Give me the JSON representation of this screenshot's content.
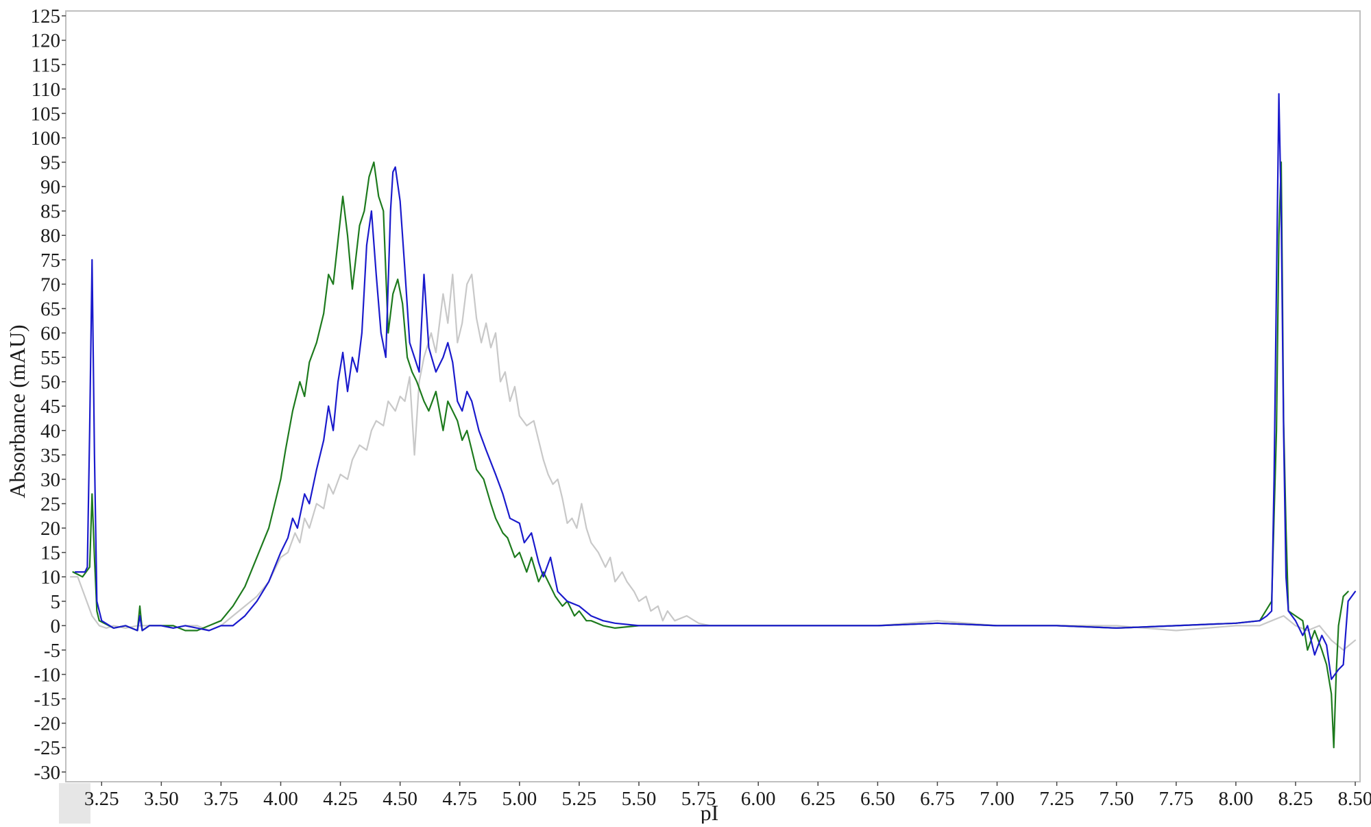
{
  "chart_data": {
    "type": "line",
    "xlabel": "pI",
    "ylabel": "Absorbance (mAU)",
    "xlim": [
      3.1,
      8.52
    ],
    "ylim": [
      -32,
      126
    ],
    "x_ticks": [
      3.25,
      3.5,
      3.75,
      4.0,
      4.25,
      4.5,
      4.75,
      5.0,
      5.25,
      5.5,
      5.75,
      6.0,
      6.25,
      6.5,
      6.75,
      7.0,
      7.25,
      7.5,
      7.75,
      8.0,
      8.25,
      8.5
    ],
    "x_tick_labels": [
      "3.25",
      "3.50",
      "3.75",
      "4.00",
      "4.25",
      "4.50",
      "4.75",
      "5.00",
      "5.25",
      "5.50",
      "5.75",
      "6.00",
      "6.25",
      "6.50",
      "6.75",
      "7.00",
      "7.25",
      "7.50",
      "7.75",
      "8.00",
      "8.25",
      "8.50"
    ],
    "y_ticks": [
      -30,
      -25,
      -20,
      -15,
      -10,
      -5,
      0,
      5,
      10,
      15,
      20,
      25,
      30,
      35,
      40,
      45,
      50,
      55,
      60,
      65,
      70,
      75,
      80,
      85,
      90,
      95,
      100,
      105,
      110,
      115,
      120,
      125
    ],
    "y_tick_labels": [
      "-30",
      "-25",
      "-20",
      "-15",
      "-10",
      "-5",
      "0",
      "5",
      "10",
      "15",
      "20",
      "25",
      "30",
      "35",
      "40",
      "45",
      "50",
      "55",
      "60",
      "65",
      "70",
      "75",
      "80",
      "85",
      "90",
      "95",
      "100",
      "105",
      "110",
      "115",
      "120",
      "125"
    ],
    "grid": false,
    "legend": "none",
    "series": [
      {
        "color": "#c8c8c8",
        "x": [
          3.12,
          3.15,
          3.18,
          3.21,
          3.24,
          3.27,
          3.3,
          3.35,
          3.4,
          3.45,
          3.5,
          3.55,
          3.6,
          3.65,
          3.7,
          3.75,
          3.8,
          3.85,
          3.9,
          3.95,
          4.0,
          4.03,
          4.06,
          4.08,
          4.1,
          4.12,
          4.15,
          4.18,
          4.2,
          4.22,
          4.25,
          4.28,
          4.3,
          4.33,
          4.36,
          4.38,
          4.4,
          4.43,
          4.45,
          4.48,
          4.5,
          4.52,
          4.54,
          4.56,
          4.58,
          4.6,
          4.63,
          4.65,
          4.68,
          4.7,
          4.72,
          4.74,
          4.76,
          4.78,
          4.8,
          4.82,
          4.84,
          4.86,
          4.88,
          4.9,
          4.92,
          4.94,
          4.96,
          4.98,
          5.0,
          5.03,
          5.06,
          5.08,
          5.1,
          5.12,
          5.14,
          5.16,
          5.18,
          5.2,
          5.22,
          5.24,
          5.26,
          5.28,
          5.3,
          5.33,
          5.36,
          5.38,
          5.4,
          5.43,
          5.45,
          5.48,
          5.5,
          5.53,
          5.55,
          5.58,
          5.6,
          5.62,
          5.65,
          5.7,
          5.75,
          5.8,
          5.9,
          6.0,
          6.25,
          6.5,
          6.75,
          7.0,
          7.25,
          7.5,
          7.75,
          8.0,
          8.1,
          8.15,
          8.2,
          8.25,
          8.3,
          8.35,
          8.4,
          8.45,
          8.5
        ],
        "y": [
          10,
          10,
          6,
          2,
          0,
          -0.5,
          0,
          -0.5,
          0,
          0,
          0,
          -0.5,
          0,
          0,
          -1,
          0,
          2,
          4,
          6,
          9,
          14,
          15,
          19,
          17,
          22,
          20,
          25,
          24,
          29,
          27,
          31,
          30,
          34,
          37,
          36,
          40,
          42,
          41,
          46,
          44,
          47,
          46,
          51,
          35,
          50,
          55,
          60,
          56,
          68,
          62,
          72,
          58,
          62,
          70,
          72,
          63,
          58,
          62,
          57,
          60,
          50,
          52,
          46,
          49,
          43,
          41,
          42,
          38,
          34,
          31,
          29,
          30,
          26,
          21,
          22,
          20,
          25,
          20,
          17,
          15,
          12,
          14,
          9,
          11,
          9,
          7,
          5,
          6,
          3,
          4,
          1,
          3,
          1,
          2,
          0.5,
          0,
          0,
          0,
          0,
          0,
          1,
          0,
          0,
          0,
          -1,
          0,
          0,
          1,
          2,
          0,
          -1,
          0,
          -3,
          -5,
          -3
        ]
      },
      {
        "color": "#1d7a1d",
        "x": [
          3.13,
          3.17,
          3.2,
          3.21,
          3.22,
          3.23,
          3.24,
          3.3,
          3.35,
          3.4,
          3.41,
          3.42,
          3.45,
          3.5,
          3.55,
          3.6,
          3.65,
          3.7,
          3.75,
          3.8,
          3.85,
          3.9,
          3.95,
          3.97,
          4.0,
          4.02,
          4.05,
          4.08,
          4.1,
          4.12,
          4.15,
          4.18,
          4.2,
          4.22,
          4.24,
          4.26,
          4.28,
          4.3,
          4.33,
          4.35,
          4.37,
          4.39,
          4.41,
          4.43,
          4.45,
          4.47,
          4.49,
          4.51,
          4.53,
          4.55,
          4.57,
          4.6,
          4.62,
          4.65,
          4.68,
          4.7,
          4.72,
          4.74,
          4.76,
          4.78,
          4.8,
          4.82,
          4.85,
          4.88,
          4.9,
          4.93,
          4.95,
          4.98,
          5.0,
          5.03,
          5.05,
          5.08,
          5.1,
          5.13,
          5.15,
          5.18,
          5.2,
          5.23,
          5.25,
          5.28,
          5.3,
          5.35,
          5.4,
          5.5,
          5.6,
          5.75,
          6.0,
          6.25,
          6.5,
          6.75,
          7.0,
          7.25,
          7.5,
          7.75,
          8.0,
          8.1,
          8.15,
          8.17,
          8.18,
          8.19,
          8.2,
          8.21,
          8.22,
          8.25,
          8.28,
          8.3,
          8.33,
          8.36,
          8.38,
          8.4,
          8.41,
          8.42,
          8.43,
          8.45,
          8.47
        ],
        "y": [
          11,
          10,
          12,
          27,
          14,
          3,
          1,
          -0.5,
          0,
          -1,
          4,
          -1,
          0,
          0,
          0,
          -1,
          -1,
          0,
          1,
          4,
          8,
          14,
          20,
          24,
          30,
          36,
          44,
          50,
          47,
          54,
          58,
          64,
          72,
          70,
          79,
          88,
          80,
          69,
          82,
          85,
          92,
          95,
          88,
          85,
          60,
          68,
          71,
          66,
          55,
          52,
          50,
          46,
          44,
          48,
          40,
          46,
          44,
          42,
          38,
          40,
          36,
          32,
          30,
          25,
          22,
          19,
          18,
          14,
          15,
          11,
          14,
          9,
          11,
          8,
          6,
          4,
          5,
          2,
          3,
          1,
          1,
          0,
          -0.5,
          0,
          0,
          0,
          0,
          0,
          0,
          0.5,
          0,
          0,
          -0.5,
          0,
          0.5,
          1,
          5,
          40,
          80,
          95,
          42,
          20,
          3,
          2,
          1,
          -5,
          -1,
          -5,
          -8,
          -14,
          -25,
          -10,
          0,
          6,
          7
        ]
      },
      {
        "color": "#1a1acc",
        "x": [
          3.14,
          3.18,
          3.19,
          3.2,
          3.21,
          3.22,
          3.23,
          3.25,
          3.3,
          3.35,
          3.4,
          3.41,
          3.42,
          3.45,
          3.5,
          3.55,
          3.6,
          3.65,
          3.7,
          3.75,
          3.8,
          3.85,
          3.9,
          3.95,
          4.0,
          4.03,
          4.05,
          4.07,
          4.1,
          4.12,
          4.15,
          4.18,
          4.2,
          4.22,
          4.24,
          4.26,
          4.28,
          4.3,
          4.32,
          4.34,
          4.36,
          4.38,
          4.4,
          4.42,
          4.44,
          4.46,
          4.47,
          4.48,
          4.5,
          4.52,
          4.54,
          4.56,
          4.58,
          4.6,
          4.62,
          4.65,
          4.68,
          4.7,
          4.72,
          4.74,
          4.76,
          4.78,
          4.8,
          4.83,
          4.86,
          4.9,
          4.93,
          4.96,
          5.0,
          5.02,
          5.05,
          5.08,
          5.1,
          5.13,
          5.16,
          5.2,
          5.25,
          5.3,
          5.35,
          5.4,
          5.5,
          5.6,
          5.75,
          6.0,
          6.25,
          6.5,
          6.75,
          7.0,
          7.25,
          7.5,
          7.75,
          8.0,
          8.1,
          8.13,
          8.15,
          8.16,
          8.17,
          8.18,
          8.19,
          8.2,
          8.21,
          8.22,
          8.25,
          8.28,
          8.3,
          8.33,
          8.36,
          8.38,
          8.4,
          8.43,
          8.45,
          8.47,
          8.5
        ],
        "y": [
          11,
          11,
          12,
          40,
          75,
          35,
          5,
          1,
          -0.5,
          0,
          -1,
          2,
          -1,
          0,
          0,
          -0.5,
          0,
          -0.5,
          -1,
          0,
          0,
          2,
          5,
          9,
          15,
          18,
          22,
          20,
          27,
          25,
          32,
          38,
          45,
          40,
          50,
          56,
          48,
          55,
          52,
          60,
          78,
          85,
          72,
          60,
          55,
          85,
          93,
          94,
          87,
          73,
          58,
          55,
          52,
          72,
          57,
          52,
          55,
          58,
          54,
          46,
          44,
          48,
          46,
          40,
          36,
          31,
          27,
          22,
          21,
          17,
          19,
          13,
          10,
          14,
          7,
          5,
          4,
          2,
          1,
          0.5,
          0,
          0,
          0,
          0,
          0,
          0,
          0.5,
          0,
          0,
          -0.5,
          0,
          0.5,
          1,
          2,
          3,
          30,
          70,
          109,
          85,
          40,
          10,
          3,
          1,
          -2,
          0,
          -6,
          -2,
          -4,
          -11,
          -9,
          -8,
          5,
          7
        ]
      }
    ]
  }
}
